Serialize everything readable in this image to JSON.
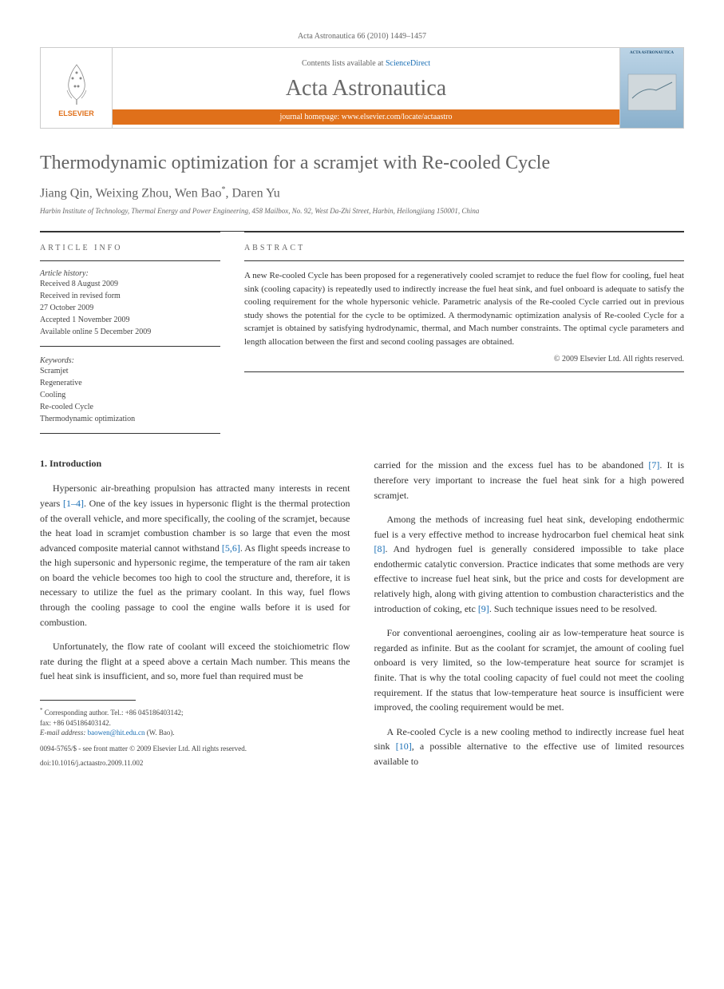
{
  "journal_header": "Acta Astronautica 66 (2010) 1449–1457",
  "header": {
    "contents_text": "Contents lists available at ",
    "contents_link": "ScienceDirect",
    "journal_name": "Acta Astronautica",
    "homepage_text": "journal homepage: ",
    "homepage_link": "www.elsevier.com/locate/actaastro",
    "publisher": "ELSEVIER",
    "thumbnail_title": "ACTA ASTRONAUTICA"
  },
  "article": {
    "title": "Thermodynamic optimization for a scramjet with Re-cooled Cycle",
    "authors": "Jiang Qin, Weixing Zhou, Wen Bao",
    "author_corr_marker": "*",
    "author_last": ", Daren Yu",
    "affiliation": "Harbin Institute of Technology, Thermal Energy and Power Engineering, 458 Mailbox, No. 92, West Da-Zhi Street, Harbin, Heilongjiang 150001, China"
  },
  "info": {
    "article_info_heading": "ARTICLE INFO",
    "abstract_heading": "ABSTRACT",
    "history_label": "Article history:",
    "history": [
      "Received 8 August 2009",
      "Received in revised form",
      "27 October 2009",
      "Accepted 1 November 2009",
      "Available online 5 December 2009"
    ],
    "keywords_label": "Keywords:",
    "keywords": [
      "Scramjet",
      "Regenerative",
      "Cooling",
      "Re-cooled Cycle",
      "Thermodynamic optimization"
    ],
    "abstract": "A new Re-cooled Cycle has been proposed for a regeneratively cooled scramjet to reduce the fuel flow for cooling, fuel heat sink (cooling capacity) is repeatedly used to indirectly increase the fuel heat sink, and fuel onboard is adequate to satisfy the cooling requirement for the whole hypersonic vehicle. Parametric analysis of the Re-cooled Cycle carried out in previous study shows the potential for the cycle to be optimized. A thermodynamic optimization analysis of Re-cooled Cycle for a scramjet is obtained by satisfying hydrodynamic, thermal, and Mach number constraints. The optimal cycle parameters and length allocation between the first and second cooling passages are obtained.",
    "copyright": "© 2009 Elsevier Ltd. All rights reserved."
  },
  "body": {
    "section1_heading": "1. Introduction",
    "para1": "Hypersonic air-breathing propulsion has attracted many interests in recent years [1–4]. One of the key issues in hypersonic flight is the thermal protection of the overall vehicle, and more specifically, the cooling of the scramjet, because the heat load in scramjet combustion chamber is so large that even the most advanced composite material cannot withstand [5,6]. As flight speeds increase to the high supersonic and hypersonic regime, the temperature of the ram air taken on board the vehicle becomes too high to cool the structure and, therefore, it is necessary to utilize the fuel as the primary coolant. In this way, fuel flows through the cooling passage to cool the engine walls before it is used for combustion.",
    "para2": "Unfortunately, the flow rate of coolant will exceed the stoichiometric flow rate during the flight at a speed above a certain Mach number. This means the fuel heat sink is insufficient, and so, more fuel than required must be",
    "para3": "carried for the mission and the excess fuel has to be abandoned [7]. It is therefore very important to increase the fuel heat sink for a high powered scramjet.",
    "para4": "Among the methods of increasing fuel heat sink, developing endothermic fuel is a very effective method to increase hydrocarbon fuel chemical heat sink [8]. And hydrogen fuel is generally considered impossible to take place endothermic catalytic conversion. Practice indicates that some methods are very effective to increase fuel heat sink, but the price and costs for development are relatively high, along with giving attention to combustion characteristics and the introduction of coking, etc [9]. Such technique issues need to be resolved.",
    "para5": "For conventional aeroengines, cooling air as low-temperature heat source is regarded as infinite. But as the coolant for scramjet, the amount of cooling fuel onboard is very limited, so the low-temperature heat source for scramjet is finite. That is why the total cooling capacity of fuel could not meet the cooling requirement. If the status that low-temperature heat source is insufficient were improved, the cooling requirement would be met.",
    "para6": "A Re-cooled Cycle is a new cooling method to indirectly increase fuel heat sink [10], a possible alternative to the effective use of limited resources available to"
  },
  "refs": {
    "r1_4": "[1–4]",
    "r5_6": "[5,6]",
    "r7": "[7]",
    "r8": "[8]",
    "r9": "[9]",
    "r10": "[10]"
  },
  "footnotes": {
    "corr_marker": "*",
    "corr_text": " Corresponding author. Tel.: +86 045186403142;",
    "fax": "fax: +86 045186403142.",
    "email_label": "E-mail address: ",
    "email": "baowen@hit.edu.cn",
    "email_author": " (W. Bao).",
    "copyright": "0094-5765/$ - see front matter © 2009 Elsevier Ltd. All rights reserved.",
    "doi": "doi:10.1016/j.actaastro.2009.11.002"
  },
  "colors": {
    "orange": "#e0701a",
    "link_blue": "#1a6fb5",
    "text_gray": "#626262",
    "border": "#333333"
  }
}
